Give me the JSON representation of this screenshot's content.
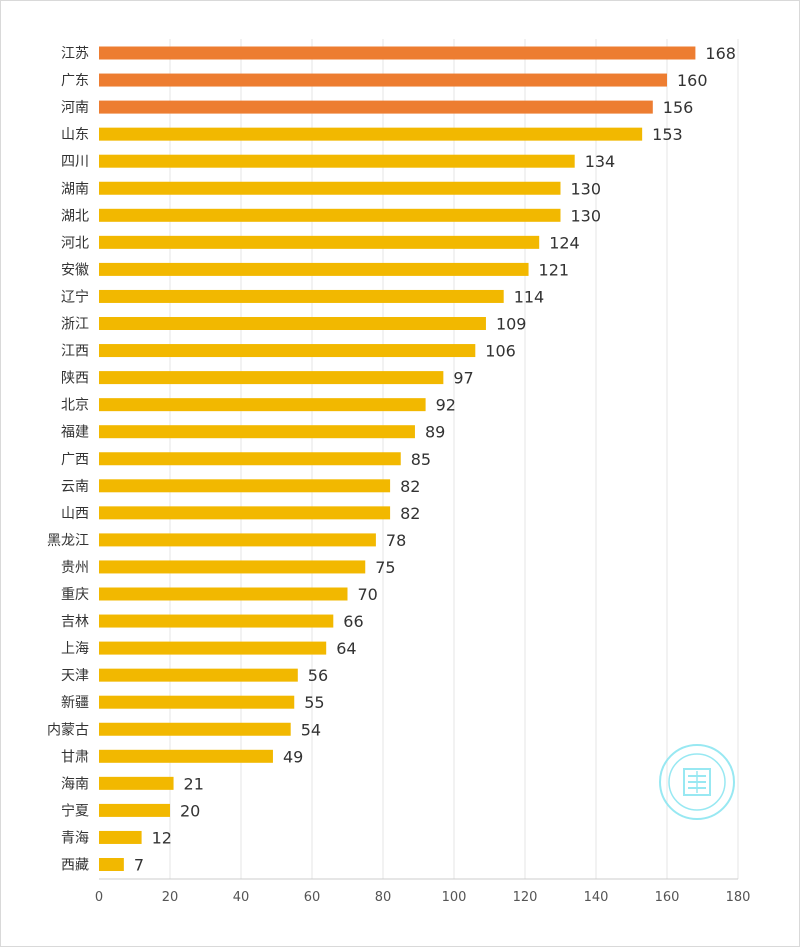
{
  "chart_data": {
    "type": "bar",
    "orientation": "horizontal",
    "title": "",
    "xlabel": "",
    "ylabel": "",
    "categories": [
      "江苏",
      "广东",
      "河南",
      "山东",
      "四川",
      "湖南",
      "湖北",
      "河北",
      "安徽",
      "辽宁",
      "浙江",
      "江西",
      "陕西",
      "北京",
      "福建",
      "广西",
      "云南",
      "山西",
      "黑龙江",
      "贵州",
      "重庆",
      "吉林",
      "上海",
      "天津",
      "新疆",
      "内蒙古",
      "甘肃",
      "海南",
      "宁夏",
      "青海",
      "西藏"
    ],
    "values": [
      168,
      160,
      156,
      153,
      134,
      130,
      130,
      124,
      121,
      114,
      109,
      106,
      97,
      92,
      89,
      85,
      82,
      82,
      78,
      75,
      70,
      66,
      64,
      56,
      55,
      54,
      49,
      21,
      20,
      12,
      7
    ],
    "highlight_count": 3,
    "colors": {
      "highlight": "#ed7d31",
      "normal": "#f2b800",
      "grid": "#e6e6e6",
      "axis": "#cccccc",
      "stamp": "#7fe3ef"
    },
    "xlim": [
      0,
      180
    ],
    "xticks": [
      0,
      20,
      40,
      60,
      80,
      100,
      120,
      140,
      160,
      180
    ],
    "grid": true,
    "data_labels": true,
    "legend": "none"
  },
  "watermark": {
    "icon": "seal-stamp-icon"
  }
}
